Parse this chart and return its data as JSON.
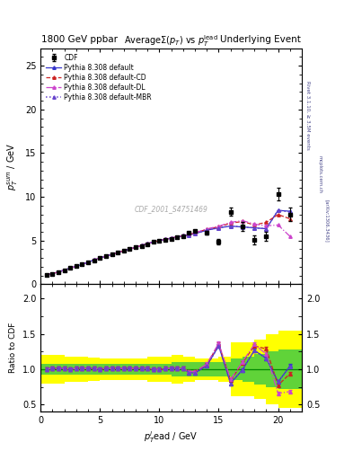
{
  "title_left": "1800 GeV ppbar",
  "title_right": "Underlying Event",
  "plot_title": "AverageΣ(p_{T}) vs p_{T}^{lead}",
  "watermark": "CDF_2001_S4751469",
  "xlim": [
    0,
    22
  ],
  "ylim_main": [
    0,
    27
  ],
  "ylim_ratio": [
    0.4,
    2.2
  ],
  "cdf_x": [
    0.5,
    1.0,
    1.5,
    2.0,
    2.5,
    3.0,
    3.5,
    4.0,
    4.5,
    5.0,
    5.5,
    6.0,
    6.5,
    7.0,
    7.5,
    8.0,
    8.5,
    9.0,
    9.5,
    10.0,
    10.5,
    11.0,
    11.5,
    12.0,
    12.5,
    13.0,
    14.0,
    15.0,
    16.0,
    17.0,
    18.0,
    19.0,
    20.0,
    21.0
  ],
  "cdf_y": [
    1.05,
    1.2,
    1.4,
    1.6,
    1.85,
    2.05,
    2.25,
    2.5,
    2.75,
    3.0,
    3.2,
    3.4,
    3.6,
    3.8,
    4.0,
    4.2,
    4.4,
    4.6,
    4.85,
    5.0,
    5.1,
    5.2,
    5.35,
    5.5,
    5.9,
    6.1,
    5.9,
    4.85,
    8.3,
    6.6,
    5.1,
    5.5,
    10.3,
    8.0
  ],
  "cdf_yerr": [
    0.05,
    0.05,
    0.05,
    0.05,
    0.05,
    0.05,
    0.05,
    0.05,
    0.05,
    0.05,
    0.05,
    0.05,
    0.05,
    0.05,
    0.05,
    0.05,
    0.05,
    0.05,
    0.05,
    0.1,
    0.1,
    0.1,
    0.1,
    0.1,
    0.1,
    0.15,
    0.2,
    0.3,
    0.5,
    0.5,
    0.5,
    0.5,
    0.7,
    0.8
  ],
  "py_x": [
    0.5,
    1.0,
    1.5,
    2.0,
    2.5,
    3.0,
    3.5,
    4.0,
    4.5,
    5.0,
    5.5,
    6.0,
    6.5,
    7.0,
    7.5,
    8.0,
    8.5,
    9.0,
    9.5,
    10.0,
    10.5,
    11.0,
    11.5,
    12.0,
    12.5,
    13.0,
    14.0,
    15.0,
    16.0,
    17.0,
    18.0,
    19.0,
    20.0,
    21.0
  ],
  "py_default_y": [
    1.05,
    1.21,
    1.41,
    1.62,
    1.84,
    2.06,
    2.27,
    2.52,
    2.77,
    3.0,
    3.21,
    3.42,
    3.62,
    3.82,
    4.02,
    4.22,
    4.43,
    4.63,
    4.84,
    4.98,
    5.13,
    5.27,
    5.41,
    5.54,
    5.63,
    5.78,
    6.18,
    6.45,
    6.65,
    6.55,
    6.45,
    6.35,
    8.45,
    8.35
  ],
  "py_cd_y": [
    1.05,
    1.21,
    1.41,
    1.62,
    1.84,
    2.06,
    2.27,
    2.52,
    2.77,
    3.0,
    3.21,
    3.42,
    3.62,
    3.82,
    4.02,
    4.22,
    4.43,
    4.63,
    4.84,
    4.98,
    5.13,
    5.27,
    5.41,
    5.55,
    5.7,
    5.88,
    6.28,
    6.58,
    6.98,
    7.18,
    6.78,
    7.08,
    7.98,
    7.48
  ],
  "py_dl_y": [
    1.05,
    1.21,
    1.41,
    1.62,
    1.84,
    2.06,
    2.27,
    2.52,
    2.77,
    3.0,
    3.21,
    3.42,
    3.62,
    3.82,
    4.02,
    4.22,
    4.43,
    4.63,
    4.84,
    4.98,
    5.13,
    5.27,
    5.41,
    5.55,
    5.7,
    5.88,
    6.33,
    6.63,
    7.08,
    7.28,
    6.88,
    6.68,
    6.78,
    5.48
  ],
  "py_mbr_y": [
    1.05,
    1.21,
    1.41,
    1.62,
    1.84,
    2.06,
    2.27,
    2.52,
    2.77,
    3.0,
    3.21,
    3.42,
    3.62,
    3.82,
    4.02,
    4.22,
    4.43,
    4.63,
    4.84,
    4.98,
    5.13,
    5.27,
    5.41,
    5.54,
    5.63,
    5.78,
    6.18,
    6.45,
    6.65,
    6.55,
    6.45,
    6.35,
    8.45,
    8.28
  ],
  "color_default": "#3333cc",
  "color_cd": "#cc2222",
  "color_dl": "#cc44cc",
  "color_mbr": "#6644cc",
  "ratio_x": [
    0.5,
    1.0,
    1.5,
    2.0,
    2.5,
    3.0,
    3.5,
    4.0,
    4.5,
    5.0,
    5.5,
    6.0,
    6.5,
    7.0,
    7.5,
    8.0,
    8.5,
    9.0,
    9.5,
    10.0,
    10.5,
    11.0,
    11.5,
    12.0,
    12.5,
    13.0,
    14.0,
    15.0,
    16.0,
    17.0,
    18.0,
    19.0,
    20.0,
    21.0
  ],
  "ratio_default_y": [
    1.0,
    1.01,
    1.01,
    1.01,
    1.0,
    1.01,
    1.01,
    1.01,
    1.01,
    1.0,
    1.01,
    1.01,
    1.01,
    1.01,
    1.01,
    1.01,
    1.01,
    1.01,
    1.0,
    0.996,
    1.006,
    1.013,
    1.007,
    1.007,
    0.954,
    0.948,
    1.048,
    1.33,
    0.801,
    0.992,
    1.265,
    1.154,
    0.82,
    1.044
  ],
  "ratio_cd_y": [
    1.0,
    1.01,
    1.01,
    1.01,
    1.0,
    1.01,
    1.01,
    1.01,
    1.01,
    1.0,
    1.01,
    1.01,
    1.01,
    1.01,
    1.01,
    1.01,
    1.01,
    1.01,
    1.0,
    0.996,
    1.006,
    1.013,
    1.007,
    1.009,
    0.966,
    0.964,
    1.064,
    1.357,
    0.841,
    1.088,
    1.329,
    1.287,
    0.775,
    0.935
  ],
  "ratio_dl_y": [
    1.0,
    1.01,
    1.01,
    1.01,
    1.0,
    1.01,
    1.01,
    1.01,
    1.01,
    1.0,
    1.01,
    1.01,
    1.01,
    1.01,
    1.01,
    1.01,
    1.01,
    1.01,
    1.0,
    0.996,
    1.006,
    1.013,
    1.007,
    1.009,
    0.966,
    0.964,
    1.074,
    1.367,
    0.854,
    1.103,
    1.349,
    1.215,
    0.658,
    0.685
  ],
  "ratio_mbr_y": [
    1.0,
    1.01,
    1.01,
    1.01,
    1.0,
    1.01,
    1.01,
    1.01,
    1.01,
    1.0,
    1.01,
    1.01,
    1.01,
    1.01,
    1.01,
    1.01,
    1.01,
    1.01,
    1.0,
    0.996,
    1.006,
    1.013,
    1.007,
    1.007,
    0.954,
    0.948,
    1.048,
    1.33,
    0.801,
    0.992,
    1.265,
    1.154,
    0.82,
    1.035
  ],
  "ratio_yerr": 0.025,
  "band_x_edges": [
    0,
    1,
    2,
    3,
    4,
    5,
    6,
    7,
    8,
    9,
    10,
    11,
    12,
    13,
    14,
    15,
    16,
    17,
    18,
    19,
    20,
    22
  ],
  "green_band": [
    0.08,
    0.08,
    0.08,
    0.08,
    0.08,
    0.08,
    0.08,
    0.08,
    0.08,
    0.08,
    0.08,
    0.1,
    0.1,
    0.1,
    0.1,
    0.1,
    0.15,
    0.18,
    0.22,
    0.25,
    0.28,
    0.28
  ],
  "yellow_band": [
    0.2,
    0.2,
    0.18,
    0.18,
    0.16,
    0.15,
    0.15,
    0.15,
    0.15,
    0.18,
    0.18,
    0.2,
    0.18,
    0.15,
    0.15,
    0.18,
    0.38,
    0.38,
    0.42,
    0.5,
    0.55,
    0.55
  ]
}
